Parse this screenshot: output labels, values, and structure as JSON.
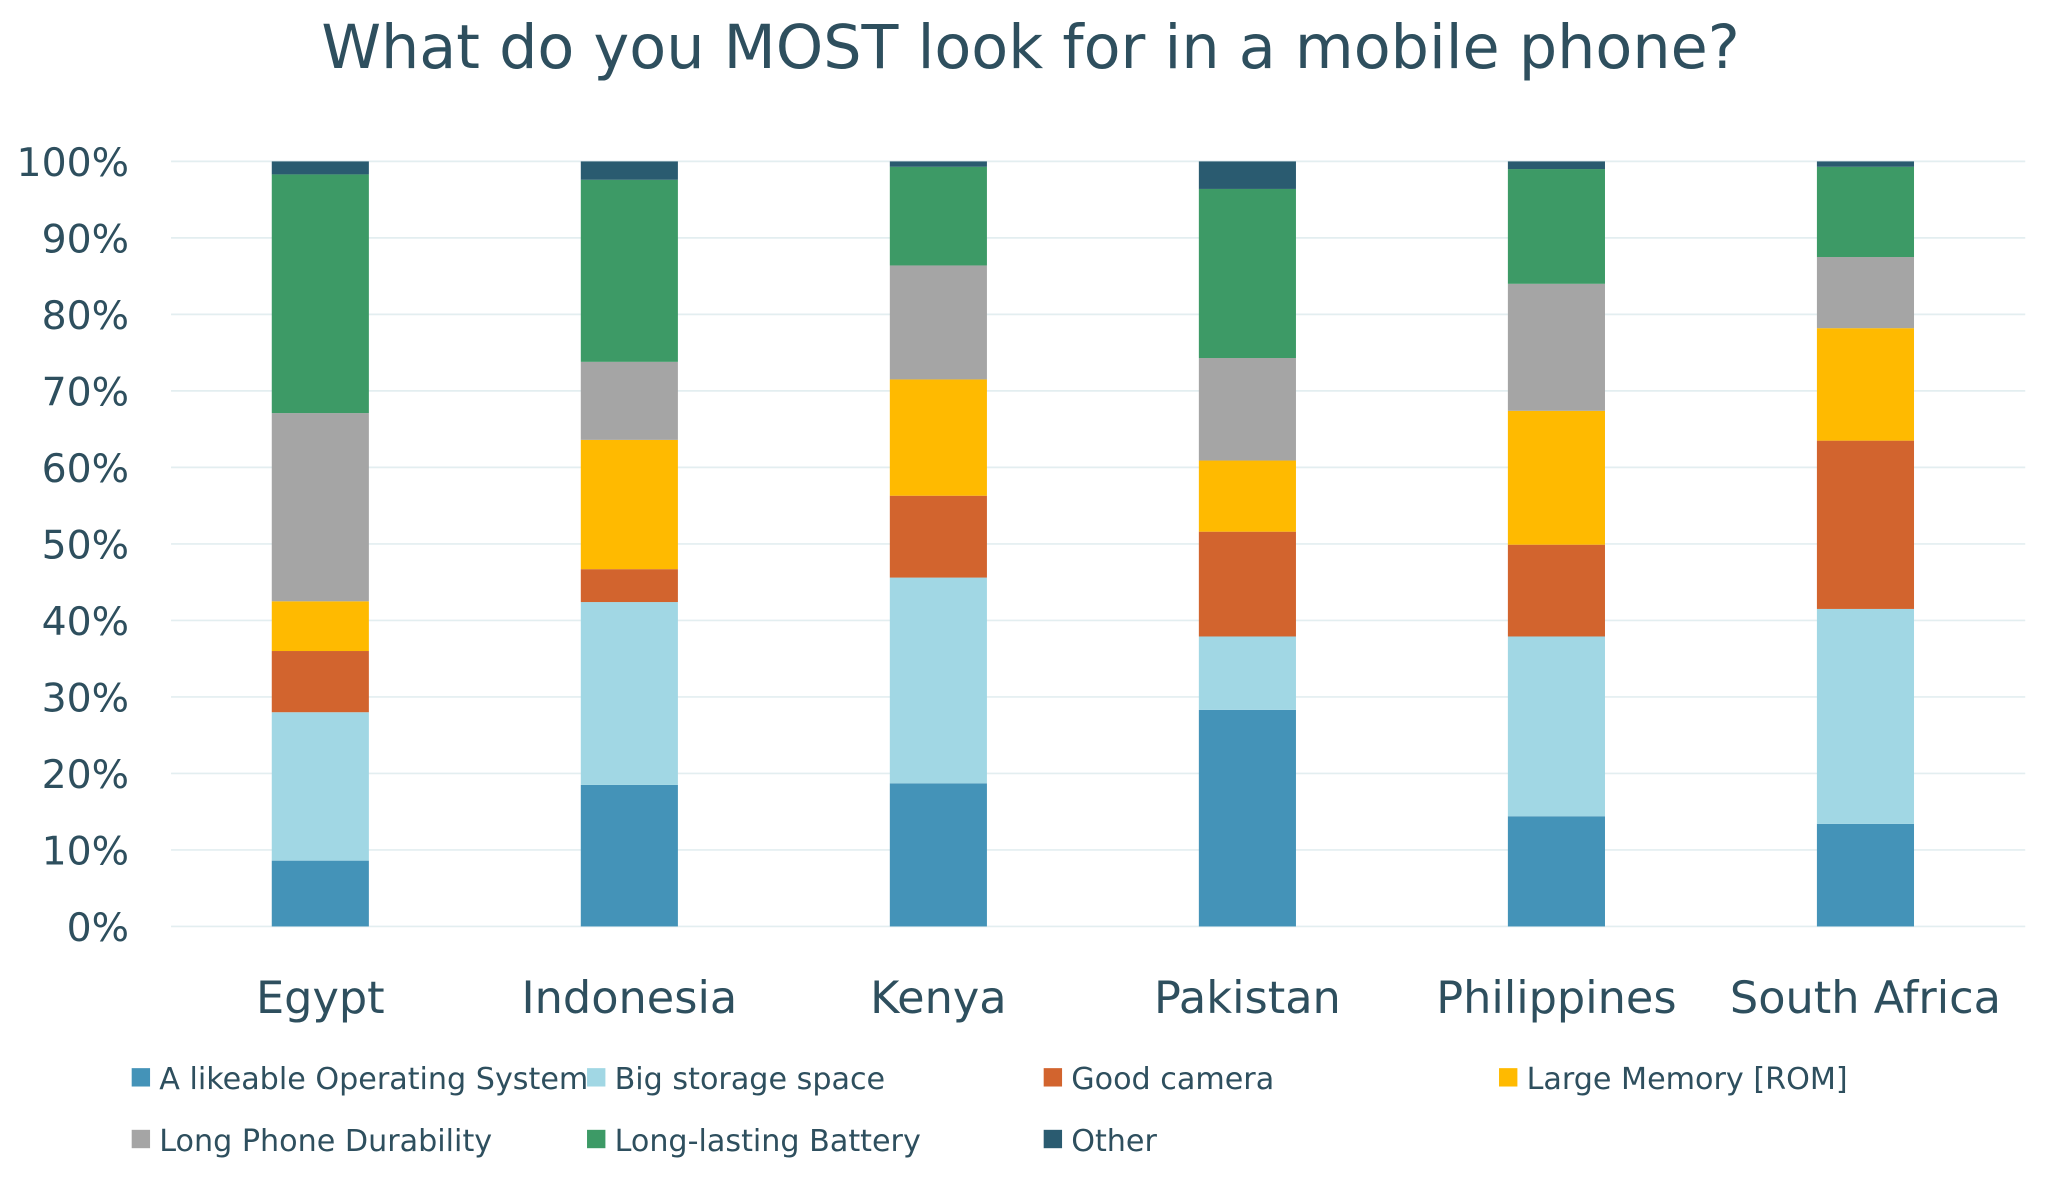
{
  "chart_data": {
    "type": "bar",
    "stacked": true,
    "title": "What do you MOST look for in a mobile phone?",
    "xlabel": "",
    "ylabel": "",
    "ylim": [
      0,
      100
    ],
    "y_ticks": [
      "0%",
      "10%",
      "20%",
      "30%",
      "40%",
      "50%",
      "60%",
      "70%",
      "80%",
      "90%",
      "100%"
    ],
    "grid": true,
    "legend_position": "bottom",
    "categories": [
      "Egypt",
      "Indonesia",
      "Kenya",
      "Pakistan",
      "Philippines",
      "South Africa"
    ],
    "series": [
      {
        "name": "A likeable Operating System",
        "color": "#4493b8",
        "values": [
          8.6,
          18.5,
          18.7,
          28.3,
          14.4,
          13.4
        ]
      },
      {
        "name": "Big storage space",
        "color": "#a1d7e4",
        "values": [
          19.4,
          23.9,
          26.9,
          9.6,
          23.5,
          28.1
        ]
      },
      {
        "name": "Good camera",
        "color": "#d2642e",
        "values": [
          8.0,
          4.3,
          10.7,
          13.7,
          12.0,
          22.0
        ]
      },
      {
        "name": "Large Memory [ROM]",
        "color": "#ffba00",
        "values": [
          6.5,
          16.9,
          15.2,
          9.3,
          17.5,
          14.7
        ]
      },
      {
        "name": "Long Phone Durability",
        "color": "#a5a5a5",
        "values": [
          24.6,
          10.2,
          14.9,
          13.4,
          16.6,
          9.3
        ]
      },
      {
        "name": "Long-lasting Battery",
        "color": "#3d9a66",
        "values": [
          31.2,
          23.8,
          12.9,
          22.1,
          15.0,
          11.8
        ]
      },
      {
        "name": "Other",
        "color": "#2a5b70",
        "values": [
          1.7,
          2.4,
          0.7,
          3.6,
          1.0,
          0.7
        ]
      }
    ]
  }
}
